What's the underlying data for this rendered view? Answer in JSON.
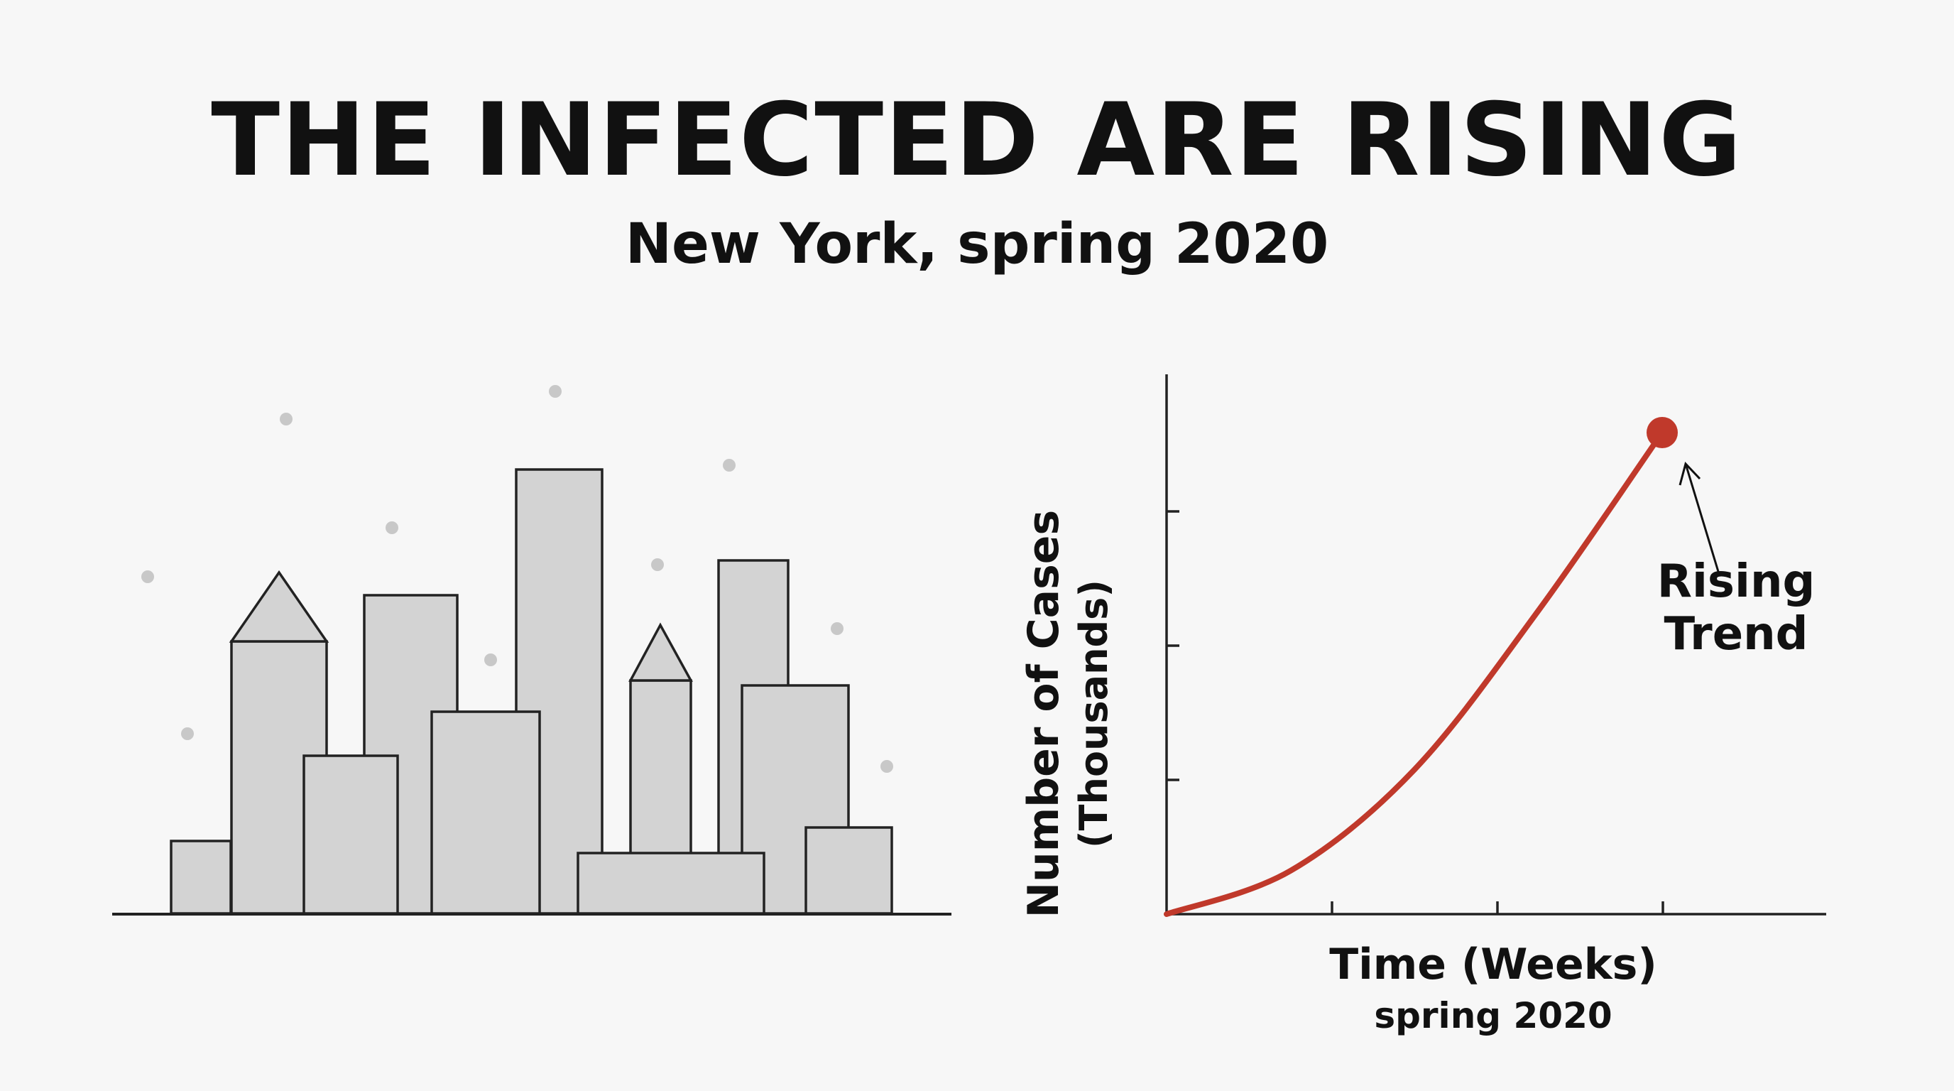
{
  "title": "THE INFECTED ARE RISING",
  "subtitle": "New York, spring 2020",
  "illustration": {
    "subject": "city-skyline",
    "fill_color": "#d3d3d3",
    "stroke_color": "#222222"
  },
  "chart_data": {
    "type": "line",
    "ylabel_line1": "Number of Cases",
    "ylabel_line2": "(Thousands)",
    "xlabel": "Time (Weeks)",
    "xlabel_sub": "spring 2020",
    "x_ticks": 3,
    "y_ticks": 3,
    "series": [
      {
        "color": "#c0392b",
        "points": [
          [
            0,
            0
          ],
          [
            0.25,
            0.09
          ],
          [
            0.5,
            0.3
          ],
          [
            0.75,
            0.63
          ],
          [
            1,
            1
          ]
        ]
      }
    ],
    "annotation": {
      "line1": "Rising",
      "line2": "Trend"
    },
    "grid": false
  }
}
